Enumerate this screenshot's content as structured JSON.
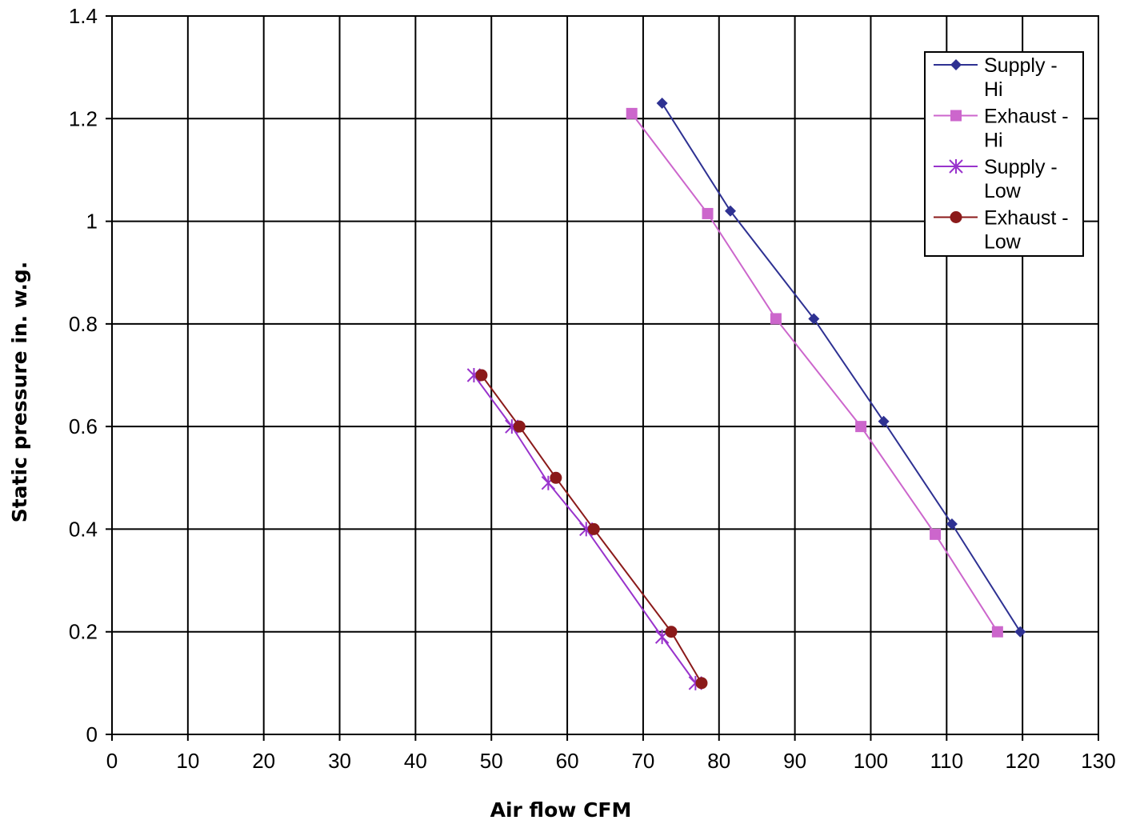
{
  "chart_data": {
    "type": "line",
    "title": "",
    "xlabel": "Air flow CFM",
    "ylabel": "Static pressure in. w.g.",
    "xlim": [
      0,
      130
    ],
    "ylim": [
      0,
      1.4
    ],
    "xticks": [
      "0",
      "10",
      "20",
      "30",
      "40",
      "50",
      "60",
      "70",
      "80",
      "90",
      "100",
      "110",
      "120",
      "130"
    ],
    "yticks": [
      "0",
      "0.2",
      "0.4",
      "0.6",
      "0.8",
      "1",
      "1.2",
      "1.4"
    ],
    "grid": true,
    "legend_position": "top-right",
    "series": [
      {
        "name": "Supply - Hi",
        "legend_lines": [
          "Supply -",
          "Hi"
        ],
        "color": "#2e3192",
        "marker": "diamond",
        "points": [
          [
            72.5,
            1.23
          ],
          [
            81.5,
            1.02
          ],
          [
            92.5,
            0.81
          ],
          [
            101.7,
            0.61
          ],
          [
            110.7,
            0.41
          ],
          [
            119.7,
            0.2
          ]
        ]
      },
      {
        "name": "Exhaust - Hi",
        "legend_lines": [
          "Exhaust -",
          "Hi"
        ],
        "color": "#cc66cc",
        "marker": "square",
        "points": [
          [
            68.5,
            1.21
          ],
          [
            78.5,
            1.015
          ],
          [
            87.5,
            0.81
          ],
          [
            98.7,
            0.6
          ],
          [
            108.5,
            0.39
          ],
          [
            116.7,
            0.2
          ]
        ]
      },
      {
        "name": "Supply - Low",
        "legend_lines": [
          "Supply -",
          "Low"
        ],
        "color": "#9933cc",
        "marker": "asterisk",
        "points": [
          [
            47.7,
            0.7
          ],
          [
            52.7,
            0.6
          ],
          [
            57.5,
            0.49
          ],
          [
            62.5,
            0.4
          ],
          [
            72.5,
            0.19
          ],
          [
            76.9,
            0.1
          ]
        ]
      },
      {
        "name": "Exhaust - Low",
        "legend_lines": [
          "Exhaust -",
          "Low"
        ],
        "color": "#8b1a1a",
        "marker": "circle",
        "points": [
          [
            48.7,
            0.7
          ],
          [
            53.7,
            0.6
          ],
          [
            58.5,
            0.5
          ],
          [
            63.5,
            0.4
          ],
          [
            73.7,
            0.2
          ],
          [
            77.7,
            0.1
          ]
        ]
      }
    ]
  }
}
